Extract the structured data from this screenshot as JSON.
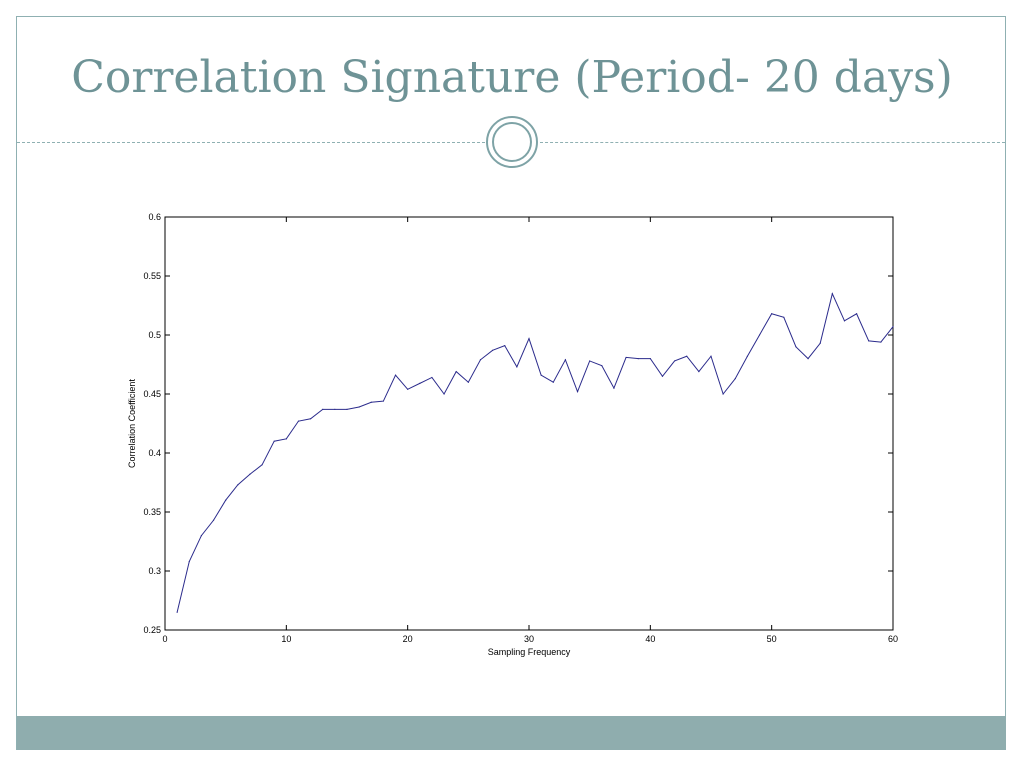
{
  "slide": {
    "title": "Correlation Signature (Period- 20 days)",
    "colors": {
      "accent": "#6e9396",
      "footer": "#8fadae",
      "line": "#2b2b8c"
    }
  },
  "chart_data": {
    "type": "line",
    "title": "",
    "xlabel": "Sampling Frequency",
    "ylabel": "Correlation Coefficient",
    "xlim": [
      0,
      60
    ],
    "ylim": [
      0.25,
      0.6
    ],
    "xticks": [
      0,
      10,
      20,
      30,
      40,
      50,
      60
    ],
    "yticks": [
      0.25,
      0.3,
      0.35,
      0.4,
      0.45,
      0.5,
      0.55,
      0.6
    ],
    "ytick_labels": [
      "0.25",
      "0.3",
      "0.35",
      "0.4",
      "0.45",
      "0.5",
      "0.55",
      "0.6"
    ],
    "grid": false,
    "series": [
      {
        "x": [
          1,
          2,
          3,
          4,
          5,
          6,
          7,
          8,
          9,
          10,
          11,
          12,
          13,
          14,
          15,
          16,
          17,
          18,
          19,
          20,
          21,
          22,
          23,
          24,
          25,
          26,
          27,
          28,
          29,
          30,
          31,
          32,
          33,
          34,
          35,
          36,
          37,
          38,
          39,
          40,
          41,
          42,
          43,
          44,
          45,
          46,
          47,
          48,
          49,
          50,
          51,
          52,
          53,
          54,
          55,
          56,
          57,
          58,
          59,
          60
        ],
        "y": [
          0.265,
          0.308,
          0.33,
          0.343,
          0.36,
          0.373,
          0.382,
          0.39,
          0.41,
          0.412,
          0.427,
          0.429,
          0.437,
          0.437,
          0.437,
          0.439,
          0.443,
          0.444,
          0.466,
          0.454,
          0.459,
          0.464,
          0.45,
          0.469,
          0.46,
          0.479,
          0.487,
          0.491,
          0.473,
          0.497,
          0.466,
          0.46,
          0.479,
          0.452,
          0.478,
          0.474,
          0.455,
          0.481,
          0.48,
          0.48,
          0.465,
          0.478,
          0.482,
          0.469,
          0.482,
          0.45,
          0.463,
          0.482,
          0.5,
          0.518,
          0.515,
          0.49,
          0.48,
          0.493,
          0.535,
          0.512,
          0.518,
          0.495,
          0.494,
          0.507
        ]
      }
    ]
  }
}
